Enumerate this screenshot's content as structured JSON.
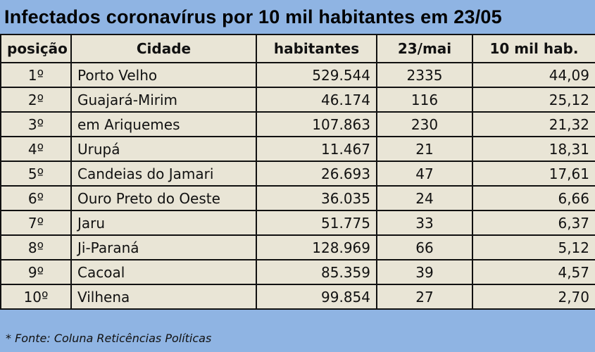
{
  "title": "Infectados coronavírus por 10 mil habitantes em 23/05",
  "columns": [
    "posição",
    "Cidade",
    "habitantes",
    "23/mai",
    "10 mil hab."
  ],
  "rows": [
    [
      "1º",
      "Porto Velho",
      "529.544",
      "2335",
      "44,09"
    ],
    [
      "2º",
      "Guajará-Mirim",
      "46.174",
      "116",
      "25,12"
    ],
    [
      "3º",
      "em Ariquemes",
      "107.863",
      "230",
      "21,32"
    ],
    [
      "4º",
      "Urupá",
      "11.467",
      "21",
      "18,31"
    ],
    [
      "5º",
      "Candeias do Jamari",
      "26.693",
      "47",
      "17,61"
    ],
    [
      "6º",
      "Ouro Preto do Oeste",
      "36.035",
      "24",
      "6,66"
    ],
    [
      "7º",
      "Jaru",
      "51.775",
      "33",
      "6,37"
    ],
    [
      "8º",
      "Ji-Paraná",
      "128.969",
      "66",
      "5,12"
    ],
    [
      "9º",
      "Cacoal",
      "85.359",
      "39",
      "4,57"
    ],
    [
      "10º",
      "Vilhena",
      "99.854",
      "27",
      "2,70"
    ]
  ],
  "footer": "* Fonte: Coluna Reticências Políticas",
  "colors": {
    "header_blue": "#8fb4e3",
    "cell_bg": "#e9e5d6"
  }
}
